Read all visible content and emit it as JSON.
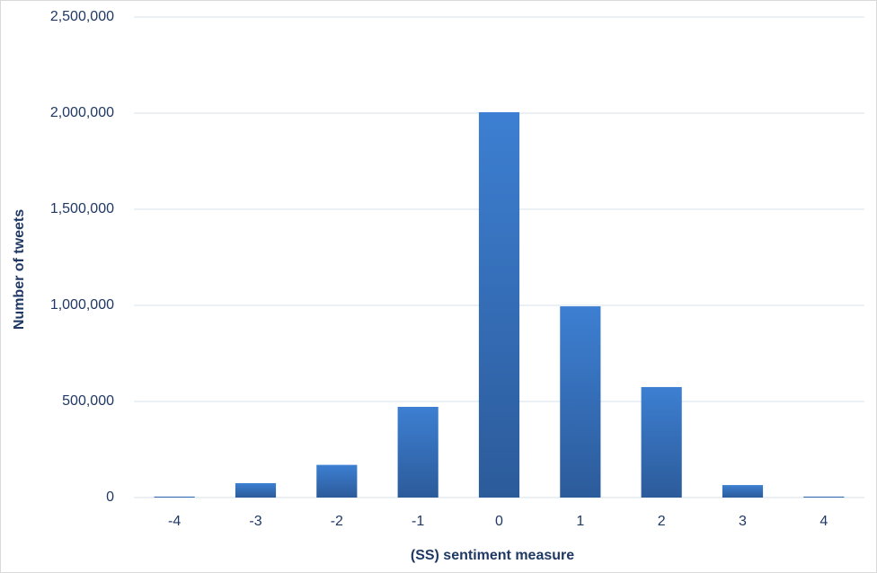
{
  "chart_data": {
    "type": "bar",
    "x_label": "(SS) sentiment measure",
    "y_label": "Number of tweets",
    "categories": [
      "-4",
      "-3",
      "-2",
      "-1",
      "0",
      "1",
      "2",
      "3",
      "4"
    ],
    "values": [
      5000,
      75000,
      170000,
      472000,
      2005000,
      995000,
      575000,
      65000,
      5000
    ],
    "color": "#3d7fd2",
    "ylim": [
      0,
      2500000
    ],
    "yticks": [
      0,
      {
        "value": 500000,
        "label": "500,000"
      },
      {
        "value": 1000000,
        "label": "1,000,000"
      },
      {
        "value": 1500000,
        "label": "1,500,000"
      },
      {
        "value": 2000000,
        "label": "2,000,000"
      },
      {
        "value": 2500000,
        "label": "2,500,000"
      }
    ],
    "grid": true
  }
}
